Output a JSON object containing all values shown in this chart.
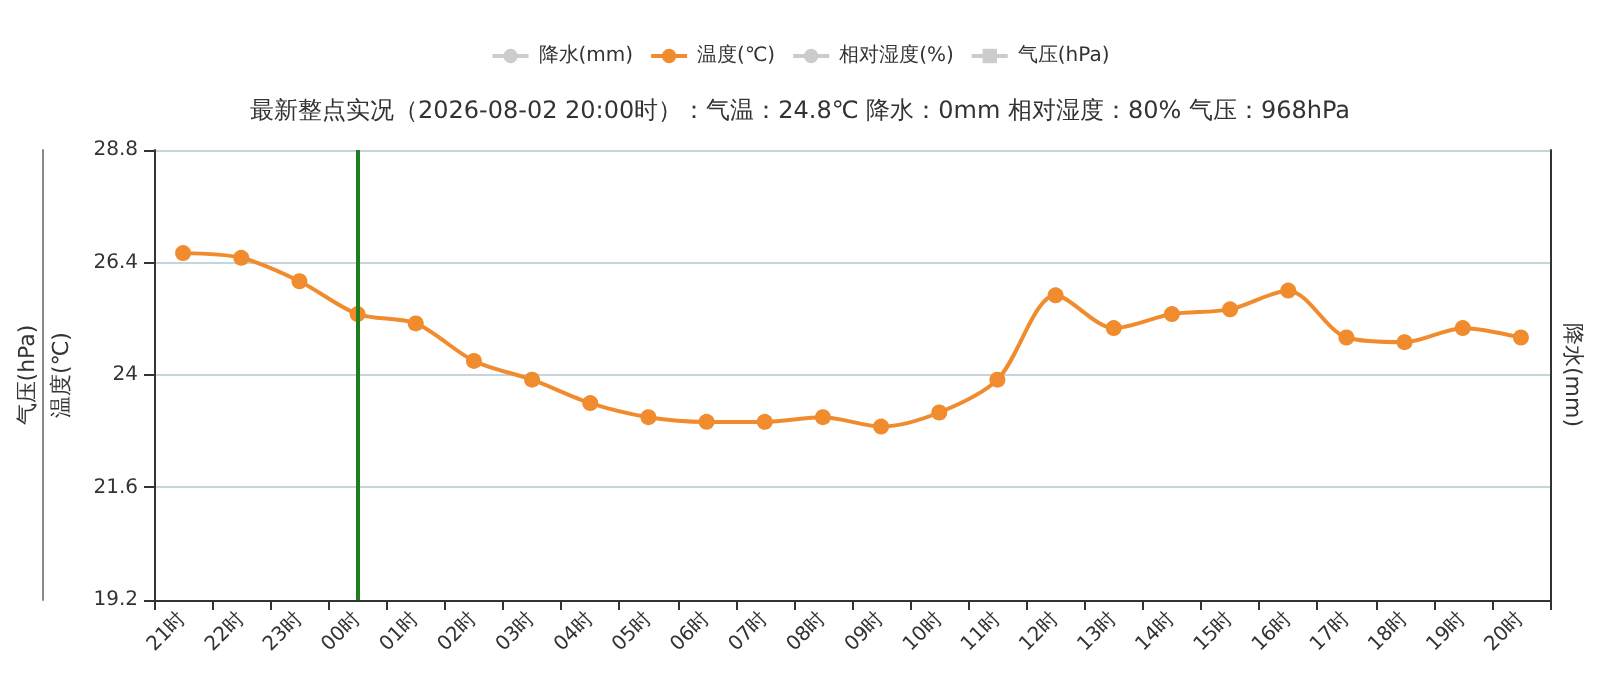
{
  "chart_data": {
    "type": "line",
    "subtitle": "最新整点实况（2026-08-02 20:00时）：气温：24.8℃ 降水：0mm 相对湿度：80% 气压：968hPa",
    "ylabel": "温度(℃)",
    "y2label": "降水(mm)",
    "y3label": "气压(hPa)",
    "categories": [
      "21时",
      "22时",
      "23时",
      "00时",
      "01时",
      "02时",
      "03时",
      "04时",
      "05时",
      "06时",
      "07时",
      "08时",
      "09时",
      "10时",
      "11时",
      "12时",
      "13时",
      "14时",
      "15时",
      "16时",
      "17时",
      "18时",
      "19时",
      "20时"
    ],
    "series": [
      {
        "name": "降水(mm)",
        "color": "#cccccc",
        "marker": "circle",
        "values": [
          null,
          null,
          null,
          null,
          null,
          null,
          null,
          null,
          null,
          null,
          null,
          null,
          null,
          null,
          null,
          null,
          null,
          null,
          null,
          null,
          null,
          null,
          null,
          null
        ]
      },
      {
        "name": "温度(℃)",
        "color": "#f08c2e",
        "marker": "circle",
        "values": [
          26.6,
          26.5,
          26.0,
          25.3,
          25.1,
          24.3,
          23.9,
          23.4,
          23.1,
          23.0,
          23.0,
          23.1,
          22.9,
          23.2,
          23.9,
          25.7,
          25.0,
          25.3,
          25.4,
          25.8,
          24.8,
          24.7,
          25.0,
          24.8
        ]
      },
      {
        "name": "相对湿度(%)",
        "color": "#cccccc",
        "marker": "circle",
        "values": [
          null,
          null,
          null,
          null,
          null,
          null,
          null,
          null,
          null,
          null,
          null,
          null,
          null,
          null,
          null,
          null,
          null,
          null,
          null,
          null,
          null,
          null,
          null,
          null
        ]
      },
      {
        "name": "气压(hPa)",
        "color": "#cccccc",
        "marker": "square",
        "values": [
          null,
          null,
          null,
          null,
          null,
          null,
          null,
          null,
          null,
          null,
          null,
          null,
          null,
          null,
          null,
          null,
          null,
          null,
          null,
          null,
          null,
          null,
          null,
          null
        ]
      }
    ],
    "ylim": [
      19.2,
      28.8
    ],
    "yticks": [
      19.2,
      21.6,
      24,
      26.4,
      28.8
    ],
    "grid": "y",
    "legend": "top",
    "line_style": "solid",
    "ref_lines": [
      {
        "axis": "x",
        "value": "00时",
        "color": "#1e7d1e"
      }
    ]
  }
}
